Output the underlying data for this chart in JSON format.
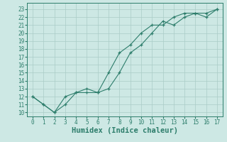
{
  "xlabel": "Humidex (Indice chaleur)",
  "x_ticks": [
    0,
    1,
    2,
    3,
    4,
    5,
    6,
    7,
    8,
    9,
    10,
    11,
    12,
    13,
    14,
    15,
    16,
    17
  ],
  "y_ticks": [
    10,
    11,
    12,
    13,
    14,
    15,
    16,
    17,
    18,
    19,
    20,
    21,
    22,
    23
  ],
  "ylim": [
    9.5,
    23.8
  ],
  "xlim": [
    -0.5,
    17.5
  ],
  "line1_x": [
    0,
    1,
    2,
    3,
    4,
    5,
    6,
    7,
    8,
    9,
    10,
    11,
    12,
    13,
    14,
    15,
    16,
    17
  ],
  "line1_y": [
    12,
    11,
    10,
    11,
    12.5,
    12.5,
    12.5,
    15,
    17.5,
    18.5,
    20,
    21,
    21,
    22,
    22.5,
    22.5,
    22,
    23
  ],
  "line2_x": [
    0,
    1,
    2,
    3,
    4,
    5,
    6,
    7,
    8,
    9,
    10,
    11,
    12,
    13,
    14,
    15,
    16,
    17
  ],
  "line2_y": [
    12,
    11,
    10,
    12,
    12.5,
    13,
    12.5,
    13,
    15,
    17.5,
    18.5,
    20,
    21.5,
    21,
    22,
    22.5,
    22.5,
    23
  ],
  "line_color": "#2d7d6b",
  "bg_color": "#cde8e4",
  "grid_color": "#aaccc7",
  "tick_fontsize": 5.5,
  "label_fontsize": 7.5,
  "label_fontweight": "bold"
}
